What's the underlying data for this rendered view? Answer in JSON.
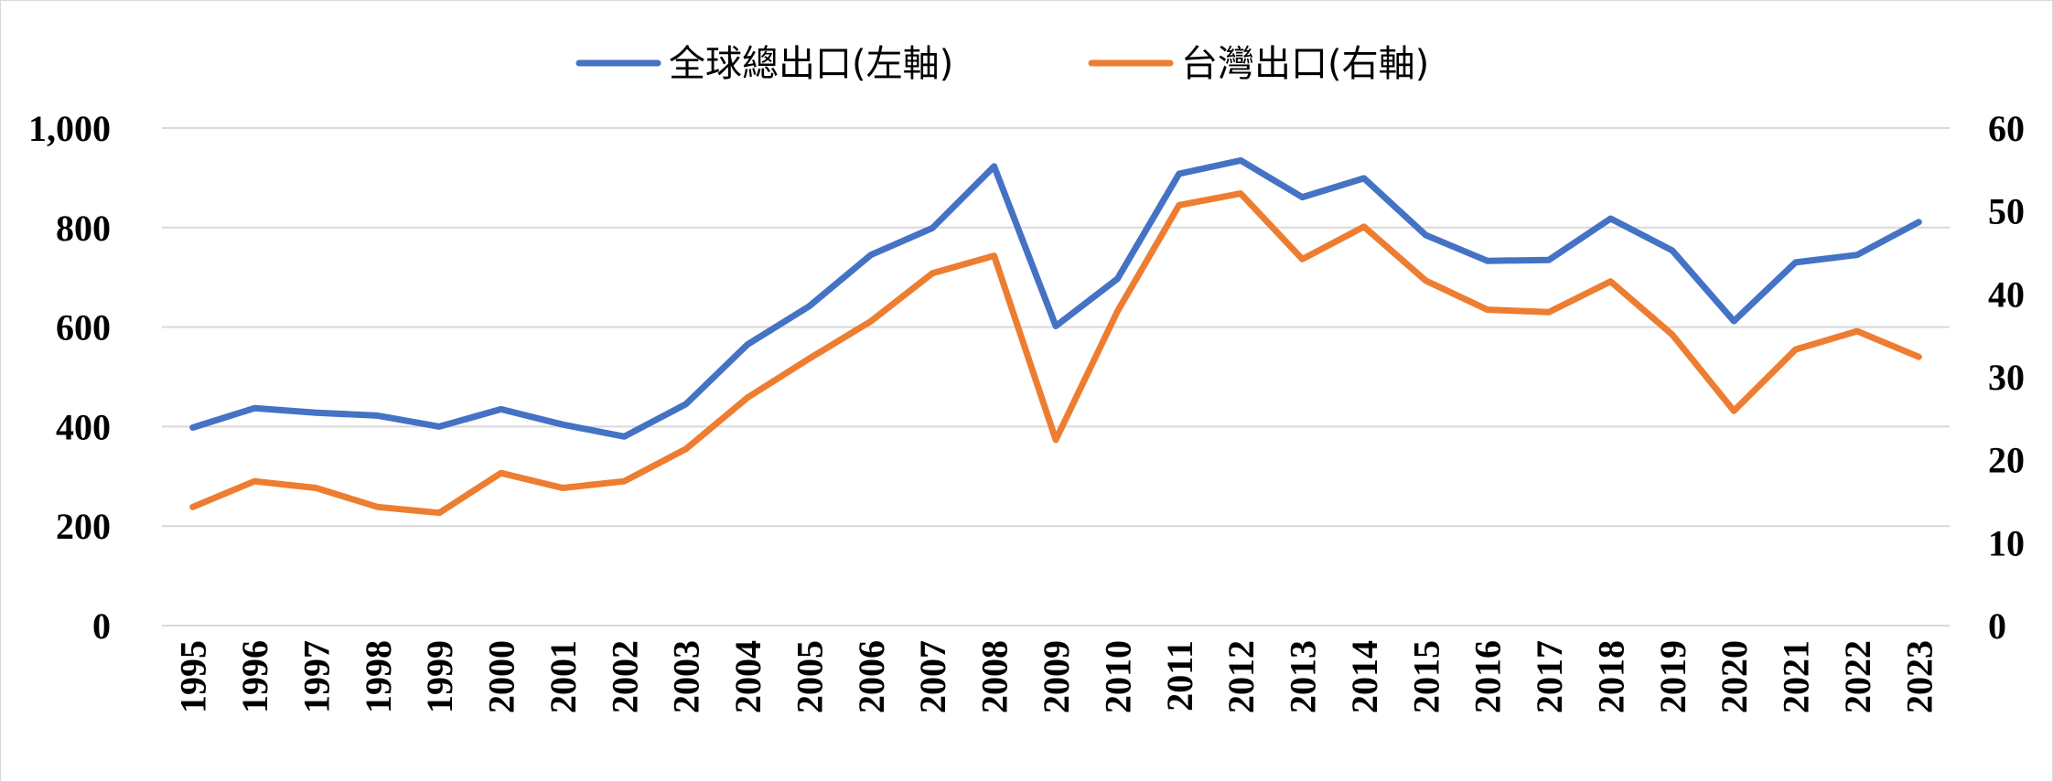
{
  "chart_data": {
    "type": "line",
    "title": "",
    "xlabel": "",
    "ylabel_left": "",
    "ylabel_right": "",
    "grid": true,
    "legend_position": "top",
    "x": [
      "1995",
      "1996",
      "1997",
      "1998",
      "1999",
      "2000",
      "2001",
      "2002",
      "2003",
      "2004",
      "2005",
      "2006",
      "2007",
      "2008",
      "2009",
      "2010",
      "2011",
      "2012",
      "2013",
      "2014",
      "2015",
      "2016",
      "2017",
      "2018",
      "2019",
      "2020",
      "2021",
      "2022",
      "2023"
    ],
    "y_left": {
      "min": 0,
      "max": 1000,
      "ticks": [
        0,
        200,
        400,
        600,
        800,
        1000
      ],
      "tick_labels": [
        "0",
        "200",
        "400",
        "600",
        "800",
        "1,000"
      ]
    },
    "y_right": {
      "min": 0,
      "max": 60,
      "ticks": [
        0,
        10,
        20,
        30,
        40,
        50,
        60
      ],
      "tick_labels": [
        "0",
        "10",
        "20",
        "30",
        "40",
        "50",
        "60"
      ]
    },
    "series": [
      {
        "name": "全球總出口(左軸)",
        "axis": "left",
        "color": "#4472c4",
        "values": [
          398,
          437,
          428,
          422,
          400,
          435,
          404,
          380,
          445,
          565,
          642,
          745,
          799,
          923,
          602,
          697,
          908,
          935,
          861,
          899,
          785,
          733,
          735,
          818,
          754,
          612,
          730,
          745,
          811
        ]
      },
      {
        "name": "台灣出口(右軸)",
        "axis": "right",
        "color": "#ed7d31",
        "values": [
          14.3,
          17.4,
          16.6,
          14.3,
          13.6,
          18.4,
          16.6,
          17.4,
          21.3,
          27.5,
          32.2,
          36.7,
          42.5,
          44.6,
          22.4,
          37.9,
          50.7,
          52.1,
          44.2,
          48.1,
          41.6,
          38.1,
          37.8,
          41.5,
          35.1,
          25.9,
          33.3,
          35.5,
          32.4
        ]
      }
    ]
  }
}
